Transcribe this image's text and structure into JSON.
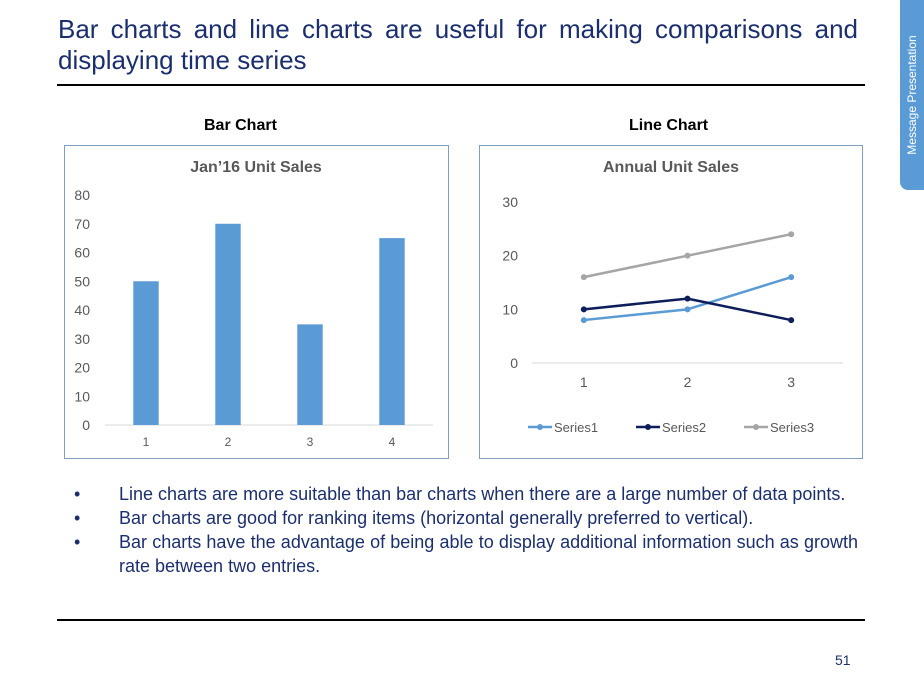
{
  "slide": {
    "title": "Bar charts and line charts are useful for making comparisons and displaying time series",
    "side_tab": "Message Presentation",
    "page_number": "51",
    "bullets": [
      "Line charts are more suitable than bar charts when there are a large number of data points.",
      "Bar charts are good for ranking items (horizontal generally preferred to vertical).",
      "Bar charts have the advantage of being able to display additional information such as growth rate between two entries."
    ],
    "bullet_char": "•",
    "bar_label": "Bar Chart",
    "line_label": "Line Chart"
  },
  "chart_data": [
    {
      "type": "bar",
      "title": "Jan’16 Unit Sales",
      "categories": [
        "1",
        "2",
        "3",
        "4"
      ],
      "values": [
        50,
        70,
        35,
        65
      ],
      "ylim": [
        0,
        80
      ],
      "yticks": [
        "0",
        "10",
        "20",
        "30",
        "40",
        "50",
        "60",
        "70",
        "80"
      ],
      "grid": false,
      "color": "#5b9bd5"
    },
    {
      "type": "line",
      "title": "Annual Unit Sales",
      "x": [
        "1",
        "2",
        "3"
      ],
      "series": [
        {
          "name": "Series1",
          "values": [
            8,
            10,
            16
          ],
          "color": "#5b9bd5"
        },
        {
          "name": "Series2",
          "values": [
            10,
            12,
            8
          ],
          "color": "#0e1e5b"
        },
        {
          "name": "Series3",
          "values": [
            16,
            20,
            24
          ],
          "color": "#a5a5a5"
        }
      ],
      "ylim": [
        0,
        30
      ],
      "yticks": [
        "0",
        "10",
        "20",
        "30"
      ],
      "grid": false,
      "legend": "bottom"
    }
  ]
}
